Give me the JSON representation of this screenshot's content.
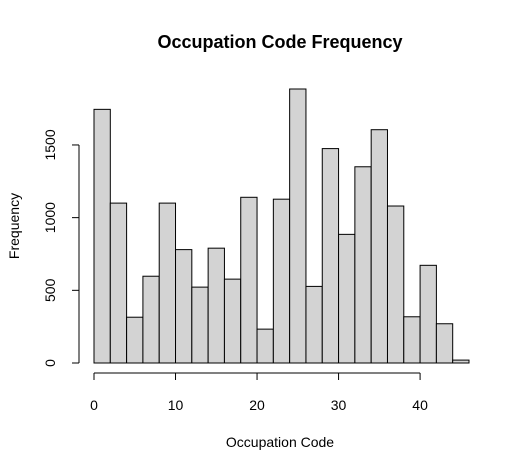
{
  "chart_data": {
    "type": "bar",
    "title": "Occupation Code Frequency",
    "xlabel": "Occupation Code",
    "ylabel": "Frequency",
    "bin_edges": [
      0,
      2,
      4,
      6,
      8,
      10,
      12,
      14,
      16,
      18,
      20,
      22,
      24,
      26,
      28,
      30,
      32,
      34,
      36,
      38,
      40,
      42,
      44,
      46
    ],
    "values": [
      1745,
      1100,
      315,
      597,
      1100,
      780,
      522,
      790,
      577,
      1140,
      233,
      1127,
      1885,
      527,
      1475,
      885,
      1350,
      1605,
      1080,
      318,
      672,
      270,
      20
    ],
    "xlim": [
      0,
      46
    ],
    "ylim": [
      0,
      1885
    ],
    "x_ticks": [
      0,
      10,
      20,
      30,
      40
    ],
    "y_ticks": [
      0,
      500,
      1000,
      1500
    ],
    "x_tick_labels": [
      "0",
      "10",
      "20",
      "30",
      "40"
    ],
    "y_tick_labels": [
      "0",
      "500",
      "1000",
      "1500"
    ],
    "bar_color": "#d3d3d3",
    "edge_color": "#000000",
    "grid": false,
    "legend": "none"
  }
}
